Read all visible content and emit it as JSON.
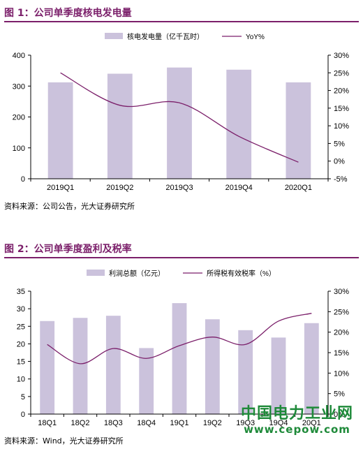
{
  "figure1": {
    "title": "图 1：公司单季度核电发电量",
    "source": "资料来源：公司公告，光大证券研究所"
  },
  "figure2": {
    "title": "图 2：公司单季度盈利及税率",
    "source": "资料来源：Wind，光大证券研究所"
  },
  "watermark": {
    "line1": "中国电力工业网",
    "line2": "www.cepow.com"
  },
  "colors": {
    "bar": "#cbc2dc",
    "line": "#7b1f6a",
    "axis": "#000000",
    "title": "#7b1f6a"
  },
  "chart_data": [
    {
      "type": "bar+line",
      "title": "",
      "categories": [
        "2019Q1",
        "2019Q2",
        "2019Q3",
        "2019Q4",
        "2020Q1"
      ],
      "series": [
        {
          "name": "核电发电量（亿千瓦时）",
          "kind": "bar",
          "axis": "left",
          "values": [
            312,
            340,
            360,
            353,
            312
          ]
        },
        {
          "name": "YoY%",
          "kind": "line",
          "axis": "right",
          "values": [
            25,
            15.8,
            16.5,
            7,
            -0.3
          ]
        }
      ],
      "ylim_left": [
        0,
        400
      ],
      "yticks_left": [
        0,
        100,
        200,
        300,
        400
      ],
      "yticklabels_left": [
        "0",
        "100",
        "200",
        "300",
        "400"
      ],
      "ylim_right": [
        -5,
        30
      ],
      "yticks_right": [
        -5,
        0,
        5,
        10,
        15,
        20,
        25,
        30
      ],
      "yticklabels_right": [
        "-5%",
        "0%",
        "5%",
        "10%",
        "15%",
        "20%",
        "25%",
        "30%"
      ],
      "legend": "top-center",
      "grid": false
    },
    {
      "type": "bar+line",
      "title": "",
      "categories": [
        "18Q1",
        "18Q2",
        "18Q3",
        "18Q4",
        "19Q1",
        "19Q2",
        "19Q3",
        "19Q4",
        "20Q1"
      ],
      "series": [
        {
          "name": "利润总额（亿元）",
          "kind": "bar",
          "axis": "left",
          "values": [
            26.5,
            27.4,
            28,
            18.8,
            31.6,
            27,
            23.9,
            21.8,
            25.9
          ]
        },
        {
          "name": "所得税有效税率（%）",
          "kind": "line",
          "axis": "right",
          "values": [
            17,
            12.3,
            16,
            13.6,
            16.7,
            18.8,
            17,
            22.7,
            24.6
          ]
        }
      ],
      "ylim_left": [
        0,
        35
      ],
      "yticks_left": [
        0,
        5,
        10,
        15,
        20,
        25,
        30,
        35
      ],
      "yticklabels_left": [
        "0",
        "5",
        "10",
        "15",
        "20",
        "25",
        "30",
        "35"
      ],
      "ylim_right": [
        0,
        30
      ],
      "yticks_right": [
        0,
        5,
        10,
        15,
        20,
        25,
        30
      ],
      "yticklabels_right": [
        "0%",
        "5%",
        "10%",
        "15%",
        "20%",
        "25%",
        "30%"
      ],
      "legend": "top-center",
      "grid": false
    }
  ]
}
